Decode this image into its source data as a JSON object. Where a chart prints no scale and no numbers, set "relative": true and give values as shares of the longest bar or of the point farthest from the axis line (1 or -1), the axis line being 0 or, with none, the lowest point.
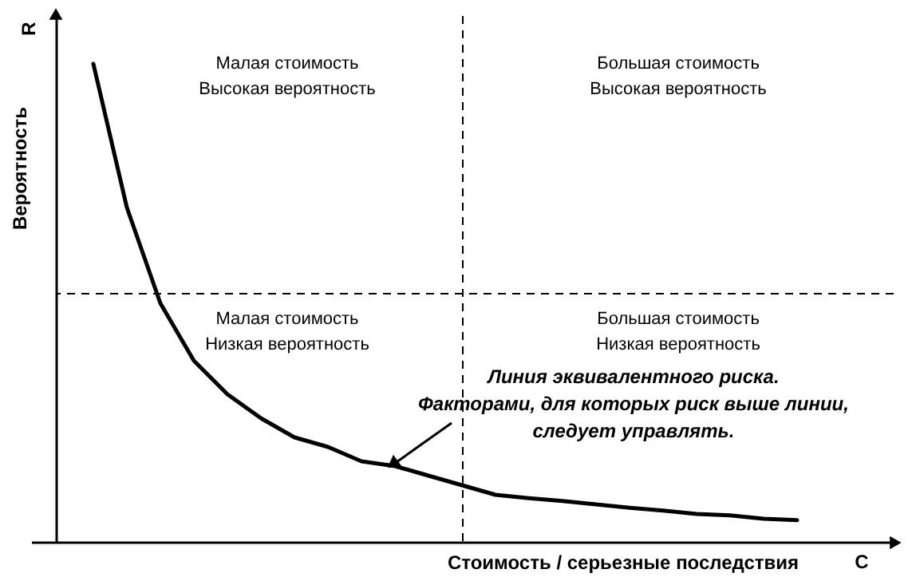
{
  "chart_data": {
    "type": "line",
    "relative": true,
    "line_style": "solid",
    "xlabel": "Стоимость / серьезные последствия",
    "ylabel": "Вероятность",
    "categories": [
      null,
      null,
      null,
      null,
      null,
      null,
      null,
      null,
      null,
      null,
      null,
      null,
      null,
      null,
      null,
      null,
      null,
      null,
      null,
      null,
      null,
      null
    ],
    "series": [
      {
        "color": "#000000",
        "values": [
          1.0,
          0.7,
          0.5,
          0.38,
          0.31,
          0.26,
          0.22,
          0.2,
          0.17,
          0.16,
          0.14,
          0.12,
          0.1,
          0.093,
          0.087,
          0.08,
          0.073,
          0.067,
          0.06,
          0.057,
          0.05,
          0.047
        ]
      }
    ],
    "ref_lines": [
      {
        "axis": "y",
        "value": 0.52,
        "line_style": "dashed"
      }
    ],
    "annotations": [
      "R",
      "C",
      "Малая стоимость\nВысокая вероятность",
      "Большая стоимость\nВысокая вероятность",
      "Малая стоимость\nНизкая вероятность",
      "Большая стоимость\nНизкая вероятность",
      "Линия эквивалентного риска.\nФакторами, для которых риск выше линии,\nследует управлять."
    ]
  }
}
